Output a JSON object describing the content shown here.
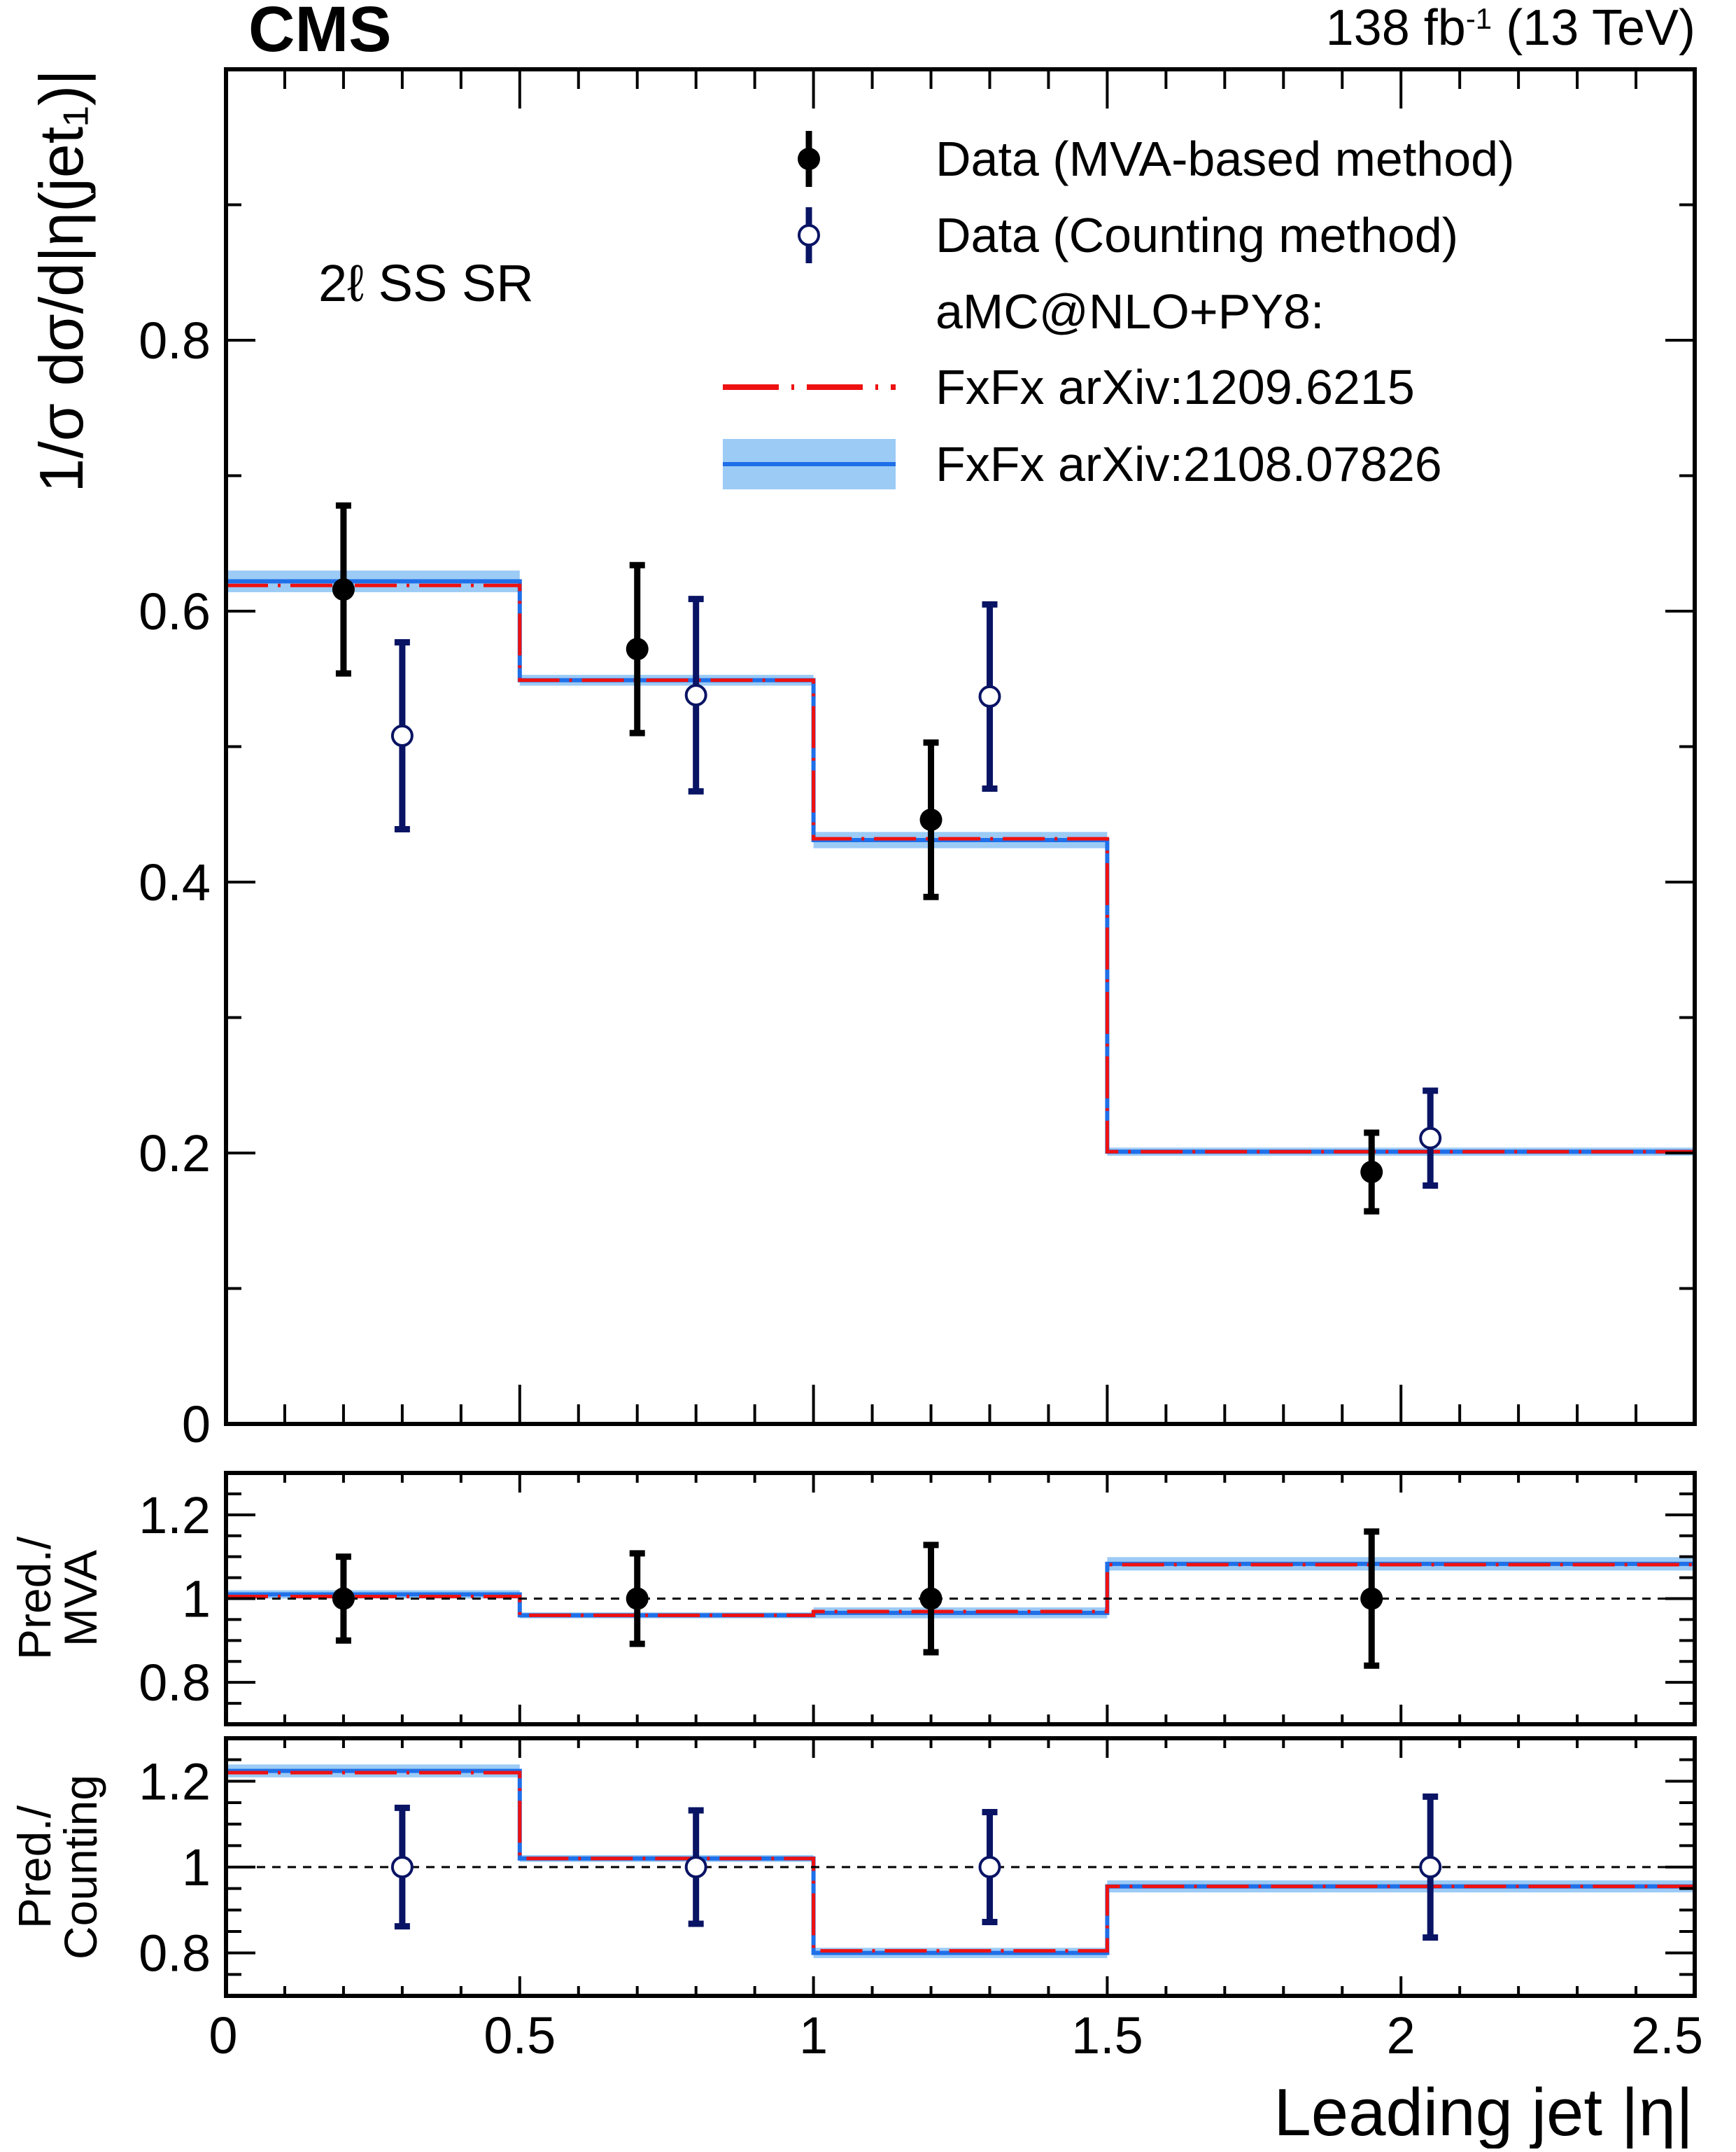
{
  "header": {
    "experiment": "CMS",
    "lumi_value": "138 fb",
    "lumi_exp": "-1",
    "energy": "(13 TeV)"
  },
  "chart_data": {
    "type": "line",
    "title": "",
    "region_label": "2ℓ SS SR",
    "xlabel": "Leading jet |η|",
    "xlim": [
      0,
      2.5
    ],
    "x_ticks": [
      "0",
      "0.5",
      "1",
      "1.5",
      "2",
      "2.5"
    ],
    "bin_edges": [
      0,
      0.5,
      1.0,
      1.5,
      2.5
    ],
    "legend": {
      "mva": "Data (MVA-based method)",
      "counting": "Data (Counting method)",
      "header": "aMC@NLO+PY8:",
      "pred_red": "FxFx arXiv:1209.6215",
      "pred_blue": "FxFx arXiv:2108.07826"
    },
    "colors": {
      "mva": "#000000",
      "counting": "#0a1464",
      "pred_red": "#ee1111",
      "pred_blue": "#1f6fe8",
      "band": "#9ccbf6"
    },
    "main": {
      "ylabel": "1/σ dσ/d|η(jet₁)|",
      "ylim": [
        0,
        1.0
      ],
      "y_ticks": [
        "0",
        "0.2",
        "0.4",
        "0.6",
        "0.8"
      ],
      "pred_red": [
        0.619,
        0.549,
        0.432,
        0.201
      ],
      "pred_blue": [
        0.622,
        0.549,
        0.431,
        0.201
      ],
      "band": [
        0.008,
        0.004,
        0.006,
        0.003
      ],
      "mva": {
        "x": [
          0.2,
          0.7,
          1.2,
          1.95
        ],
        "y": [
          0.616,
          0.572,
          0.446,
          0.186
        ],
        "err": [
          0.062,
          0.062,
          0.057,
          0.029
        ]
      },
      "counting": {
        "x": [
          0.3,
          0.8,
          1.3,
          2.05
        ],
        "y": [
          0.508,
          0.538,
          0.537,
          0.211
        ],
        "err": [
          0.069,
          0.071,
          0.068,
          0.035
        ]
      }
    },
    "ratio_mva": {
      "ylabel_line1": "Pred./",
      "ylabel_line2": "MVA",
      "ylim": [
        0.7,
        1.3
      ],
      "y_ticks": [
        "0.8",
        "1",
        "1.2"
      ],
      "pred_red": [
        1.005,
        0.96,
        0.969,
        1.081
      ],
      "pred_blue": [
        1.01,
        0.96,
        0.966,
        1.083
      ],
      "band": [
        0.01,
        0.007,
        0.013,
        0.016
      ],
      "points": {
        "x": [
          0.2,
          0.7,
          1.2,
          1.95
        ],
        "y": [
          1.0,
          1.0,
          1.0,
          1.0
        ],
        "err": [
          0.1,
          0.108,
          0.128,
          0.16
        ]
      }
    },
    "ratio_counting": {
      "ylabel_line1": "Pred./",
      "ylabel_line2": "Counting",
      "ylim": [
        0.7,
        1.3
      ],
      "y_ticks": [
        "0.8",
        "1",
        "1.2"
      ],
      "pred_red": [
        1.22,
        1.02,
        0.805,
        0.955
      ],
      "pred_blue": [
        1.224,
        1.02,
        0.8,
        0.955
      ],
      "band": [
        0.015,
        0.008,
        0.012,
        0.014
      ],
      "points": {
        "x": [
          0.3,
          0.8,
          1.3,
          2.05
        ],
        "y": [
          1.0,
          1.0,
          1.0,
          1.0
        ],
        "err": [
          0.138,
          0.132,
          0.128,
          0.164
        ]
      }
    }
  }
}
